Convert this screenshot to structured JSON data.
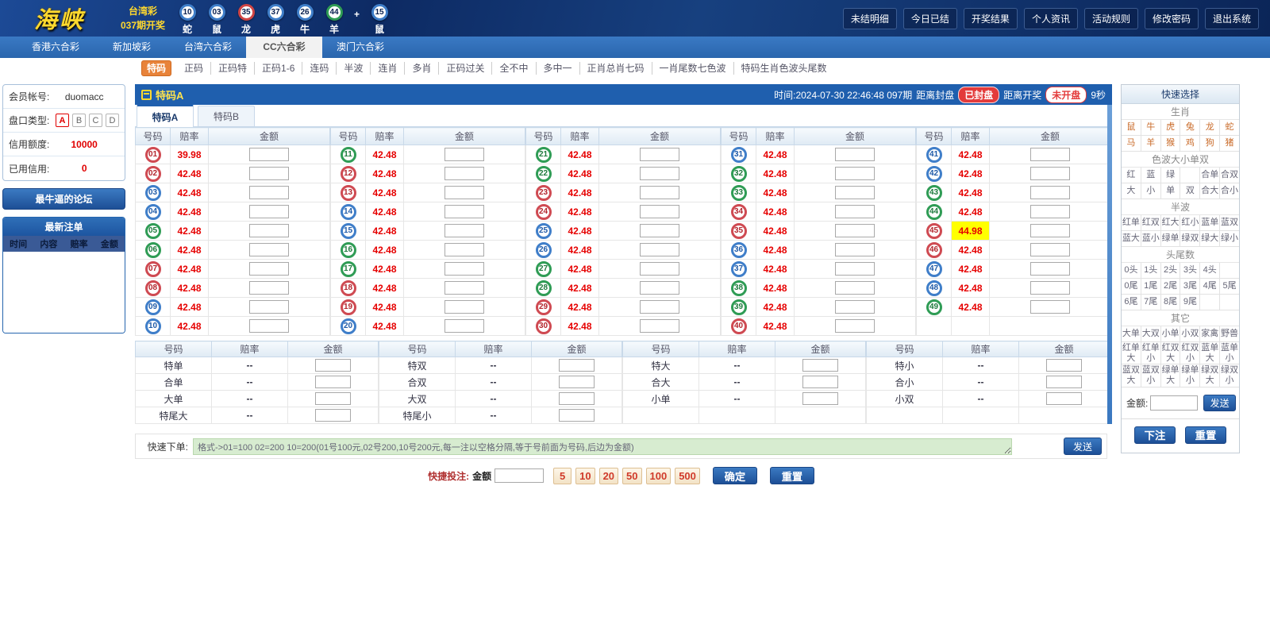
{
  "colors": {
    "accent_blue": "#1f5fae",
    "odds_red": "#e60000",
    "highlight_yellow": "#ffff00",
    "active_orange": "#e8833a",
    "ball_red": "#cf4a52",
    "ball_blue": "#3f7ec9",
    "ball_green": "#2f9c55"
  },
  "header": {
    "logo": "海峡",
    "lottery_name": "台湾彩",
    "period_label": "037期开奖",
    "balls": [
      {
        "num": "10",
        "zodiac": "蛇",
        "color": "blue"
      },
      {
        "num": "03",
        "zodiac": "鼠",
        "color": "blue"
      },
      {
        "num": "35",
        "zodiac": "龙",
        "color": "red"
      },
      {
        "num": "37",
        "zodiac": "虎",
        "color": "blue"
      },
      {
        "num": "26",
        "zodiac": "牛",
        "color": "blue"
      },
      {
        "num": "44",
        "zodiac": "羊",
        "color": "green"
      },
      {
        "plus": "+"
      },
      {
        "num": "15",
        "zodiac": "鼠",
        "color": "blue"
      }
    ],
    "menu": [
      "未结明细",
      "今日已结",
      "开奖结果",
      "个人资讯",
      "活动规则",
      "修改密码",
      "退出系统"
    ]
  },
  "nav": {
    "items": [
      {
        "label": "香港六合彩",
        "active": false
      },
      {
        "label": "新加坡彩",
        "active": false
      },
      {
        "label": "台湾六合彩",
        "active": false
      },
      {
        "label": "CC六合彩",
        "active": true
      },
      {
        "label": "澳门六合彩",
        "active": false
      }
    ]
  },
  "subnav": {
    "items": [
      {
        "label": "特码",
        "active": true
      },
      {
        "label": "正码"
      },
      {
        "label": "正码特"
      },
      {
        "label": "正码1-6"
      },
      {
        "label": "连码"
      },
      {
        "label": "半波"
      },
      {
        "label": "连肖"
      },
      {
        "label": "多肖"
      },
      {
        "label": "正码过关"
      },
      {
        "label": "全不中"
      },
      {
        "label": "多中一"
      },
      {
        "label": "正肖总肖七码"
      },
      {
        "label": "一肖尾数七色波"
      },
      {
        "label": "特码生肖色波头尾数"
      }
    ]
  },
  "sidebar": {
    "account_label": "会员帐号:",
    "account_value": "duomacc",
    "handicap_label": "盘口类型:",
    "handicap_options": [
      {
        "label": "A",
        "active": true
      },
      {
        "label": "B",
        "active": false
      },
      {
        "label": "C",
        "active": false
      },
      {
        "label": "D",
        "active": false
      }
    ],
    "credit_label": "信用额度:",
    "credit_value": "10000",
    "used_label": "已用信用:",
    "used_value": "0",
    "forum_button": "最牛逼的论坛",
    "latest_bets_title": "最新注单",
    "latest_bets_columns": [
      "时间",
      "内容",
      "赔率",
      "金额"
    ]
  },
  "statusbar": {
    "game_title": "特码A",
    "time_label": "时间:2024-07-30 22:46:48 097期",
    "close_label": "距离封盘",
    "closed_badge": "已封盘",
    "draw_label": "距离开奖",
    "open_badge": "未开盘",
    "countdown": "9秒"
  },
  "tabs": [
    {
      "label": "特码A",
      "active": true
    },
    {
      "label": "特码B",
      "active": false
    }
  ],
  "table": {
    "col_headers": {
      "number": "号码",
      "odds": "赔率",
      "amount": "金额"
    },
    "groups": [
      {
        "cells": [
          {
            "num": "01",
            "odds": "39.98",
            "color": "red"
          },
          {
            "num": "02",
            "odds": "42.48",
            "color": "red"
          },
          {
            "num": "03",
            "odds": "42.48",
            "color": "blue"
          },
          {
            "num": "04",
            "odds": "42.48",
            "color": "blue"
          },
          {
            "num": "05",
            "odds": "42.48",
            "color": "green"
          },
          {
            "num": "06",
            "odds": "42.48",
            "color": "green"
          },
          {
            "num": "07",
            "odds": "42.48",
            "color": "red"
          },
          {
            "num": "08",
            "odds": "42.48",
            "color": "red"
          },
          {
            "num": "09",
            "odds": "42.48",
            "color": "blue"
          },
          {
            "num": "10",
            "odds": "42.48",
            "color": "blue"
          }
        ]
      },
      {
        "cells": [
          {
            "num": "11",
            "odds": "42.48",
            "color": "green"
          },
          {
            "num": "12",
            "odds": "42.48",
            "color": "red"
          },
          {
            "num": "13",
            "odds": "42.48",
            "color": "red"
          },
          {
            "num": "14",
            "odds": "42.48",
            "color": "blue"
          },
          {
            "num": "15",
            "odds": "42.48",
            "color": "blue"
          },
          {
            "num": "16",
            "odds": "42.48",
            "color": "green"
          },
          {
            "num": "17",
            "odds": "42.48",
            "color": "green"
          },
          {
            "num": "18",
            "odds": "42.48",
            "color": "red"
          },
          {
            "num": "19",
            "odds": "42.48",
            "color": "red"
          },
          {
            "num": "20",
            "odds": "42.48",
            "color": "blue"
          }
        ]
      },
      {
        "cells": [
          {
            "num": "21",
            "odds": "42.48",
            "color": "green"
          },
          {
            "num": "22",
            "odds": "42.48",
            "color": "green"
          },
          {
            "num": "23",
            "odds": "42.48",
            "color": "red"
          },
          {
            "num": "24",
            "odds": "42.48",
            "color": "red"
          },
          {
            "num": "25",
            "odds": "42.48",
            "color": "blue"
          },
          {
            "num": "26",
            "odds": "42.48",
            "color": "blue"
          },
          {
            "num": "27",
            "odds": "42.48",
            "color": "green"
          },
          {
            "num": "28",
            "odds": "42.48",
            "color": "green"
          },
          {
            "num": "29",
            "odds": "42.48",
            "color": "red"
          },
          {
            "num": "30",
            "odds": "42.48",
            "color": "red"
          }
        ]
      },
      {
        "cells": [
          {
            "num": "31",
            "odds": "42.48",
            "color": "blue"
          },
          {
            "num": "32",
            "odds": "42.48",
            "color": "green"
          },
          {
            "num": "33",
            "odds": "42.48",
            "color": "green"
          },
          {
            "num": "34",
            "odds": "42.48",
            "color": "red"
          },
          {
            "num": "35",
            "odds": "42.48",
            "color": "red"
          },
          {
            "num": "36",
            "odds": "42.48",
            "color": "blue"
          },
          {
            "num": "37",
            "odds": "42.48",
            "color": "blue"
          },
          {
            "num": "38",
            "odds": "42.48",
            "color": "green"
          },
          {
            "num": "39",
            "odds": "42.48",
            "color": "green"
          },
          {
            "num": "40",
            "odds": "42.48",
            "color": "red"
          }
        ]
      },
      {
        "cells": [
          {
            "num": "41",
            "odds": "42.48",
            "color": "blue"
          },
          {
            "num": "42",
            "odds": "42.48",
            "color": "blue"
          },
          {
            "num": "43",
            "odds": "42.48",
            "color": "green"
          },
          {
            "num": "44",
            "odds": "42.48",
            "color": "green"
          },
          {
            "num": "45",
            "odds": "44.98",
            "color": "red",
            "highlight": true
          },
          {
            "num": "46",
            "odds": "42.48",
            "color": "red"
          },
          {
            "num": "47",
            "odds": "42.48",
            "color": "blue"
          },
          {
            "num": "48",
            "odds": "42.48",
            "color": "blue"
          },
          {
            "num": "49",
            "odds": "42.48",
            "color": "green"
          },
          null
        ]
      }
    ]
  },
  "lower_table": {
    "col_headers": {
      "number": "号码",
      "odds": "赔率",
      "amount": "金额"
    },
    "groups": [
      {
        "rows": [
          {
            "label": "特单",
            "odds": "--"
          },
          {
            "label": "合单",
            "odds": "--"
          },
          {
            "label": "大单",
            "odds": "--"
          },
          {
            "label": "特尾大",
            "odds": "--"
          }
        ]
      },
      {
        "rows": [
          {
            "label": "特双",
            "odds": "--"
          },
          {
            "label": "合双",
            "odds": "--"
          },
          {
            "label": "大双",
            "odds": "--"
          },
          {
            "label": "特尾小",
            "odds": "--"
          }
        ]
      },
      {
        "rows": [
          {
            "label": "特大",
            "odds": "--"
          },
          {
            "label": "合大",
            "odds": "--"
          },
          {
            "label": "小单",
            "odds": "--"
          },
          null
        ]
      },
      {
        "rows": [
          {
            "label": "特小",
            "odds": "--"
          },
          {
            "label": "合小",
            "odds": "--"
          },
          {
            "label": "小双",
            "odds": "--"
          },
          null
        ]
      }
    ]
  },
  "quick_order": {
    "label": "快速下单:",
    "format_text": "格式->01=100 02=200 10=200(01号100元,02号200,10号200元,每一注以空格分隔,等于号前面为号码,后边为金额)",
    "send_button": "发送"
  },
  "quick_bet": {
    "label": "快捷投注:",
    "amount_label": "金额",
    "presets": [
      "5",
      "10",
      "20",
      "50",
      "100",
      "500"
    ],
    "confirm_button": "确定",
    "reset_button": "重置"
  },
  "quick_select": {
    "title": "快速选择",
    "sections": [
      {
        "title": "生肖",
        "zodiac": true,
        "rows": [
          [
            "鼠",
            "牛",
            "虎",
            "兔",
            "龙",
            "蛇"
          ],
          [
            "马",
            "羊",
            "猴",
            "鸡",
            "狗",
            "猪"
          ]
        ]
      },
      {
        "title": "色波大小单双",
        "rows": [
          [
            "红",
            "蓝",
            "绿",
            "",
            "合单",
            "合双"
          ],
          [
            "大",
            "小",
            "单",
            "双",
            "合大",
            "合小"
          ]
        ]
      },
      {
        "title": "半波",
        "rows": [
          [
            "红单",
            "红双",
            "红大",
            "红小",
            "蓝单",
            "蓝双"
          ],
          [
            "蓝大",
            "蓝小",
            "绿单",
            "绿双",
            "绿大",
            "绿小"
          ]
        ]
      },
      {
        "title": "头尾数",
        "rows": [
          [
            "0头",
            "1头",
            "2头",
            "3头",
            "4头",
            ""
          ],
          [
            "0尾",
            "1尾",
            "2尾",
            "3尾",
            "4尾",
            "5尾"
          ],
          [
            "6尾",
            "7尾",
            "8尾",
            "9尾",
            "",
            ""
          ]
        ]
      },
      {
        "title": "其它",
        "rows": [
          [
            "大单",
            "大双",
            "小单",
            "小双",
            "家禽",
            "野兽"
          ],
          [
            "红单\n大",
            "红单\n小",
            "红双\n大",
            "红双\n小",
            "蓝单\n大",
            "蓝单\n小"
          ],
          [
            "蓝双\n大",
            "蓝双\n小",
            "绿单\n大",
            "绿单\n小",
            "绿双\n大",
            "绿双\n小"
          ]
        ]
      }
    ],
    "amount_label": "金额:",
    "send_button": "发送",
    "bet_button": "下注",
    "reset_button": "重置"
  }
}
